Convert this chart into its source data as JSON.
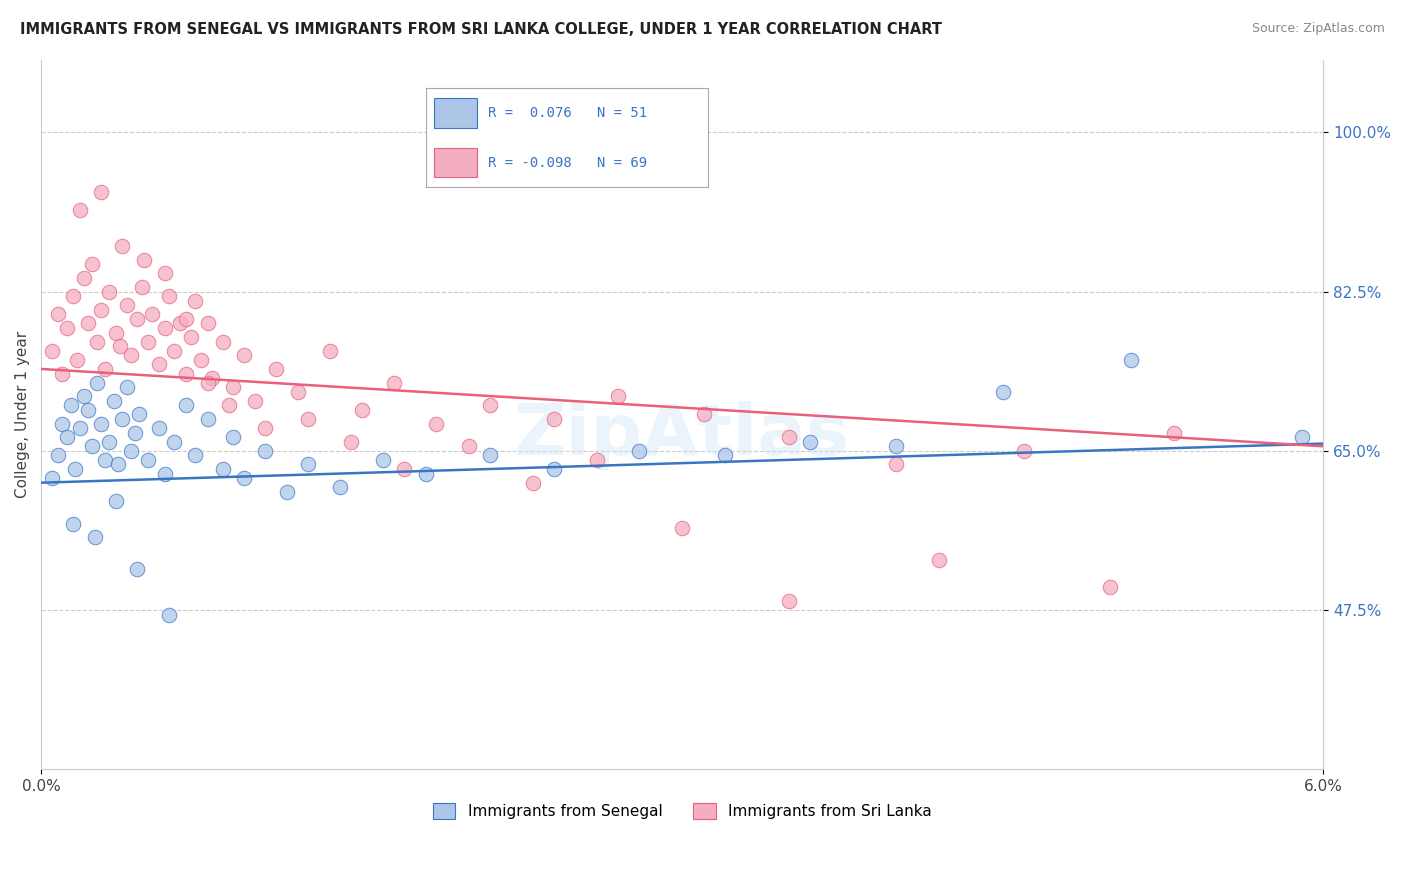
{
  "title": "IMMIGRANTS FROM SENEGAL VS IMMIGRANTS FROM SRI LANKA COLLEGE, UNDER 1 YEAR CORRELATION CHART",
  "source": "Source: ZipAtlas.com",
  "ylabel": "College, Under 1 year",
  "y_ticks": [
    47.5,
    65.0,
    82.5,
    100.0
  ],
  "y_tick_labels": [
    "47.5%",
    "65.0%",
    "82.5%",
    "100.0%"
  ],
  "x_min": 0.0,
  "x_max": 6.0,
  "y_min": 30.0,
  "y_max": 108.0,
  "legend_r1": "R =  0.076",
  "legend_n1": "N = 51",
  "legend_r2": "R = -0.098",
  "legend_n2": "N = 69",
  "color_senegal": "#adc6e8",
  "color_srilanka": "#f4aec0",
  "line_color_senegal": "#3a75c4",
  "line_color_srilanka": "#e8607a",
  "senegal_trend_x0": 0.0,
  "senegal_trend_y0": 61.5,
  "senegal_trend_x1": 6.0,
  "senegal_trend_y1": 65.8,
  "srilanka_trend_x0": 0.0,
  "srilanka_trend_y0": 74.0,
  "srilanka_trend_x1": 6.0,
  "srilanka_trend_y1": 65.5,
  "senegal_x": [
    0.05,
    0.08,
    0.1,
    0.12,
    0.14,
    0.16,
    0.18,
    0.2,
    0.22,
    0.24,
    0.26,
    0.28,
    0.3,
    0.32,
    0.34,
    0.36,
    0.38,
    0.4,
    0.42,
    0.44,
    0.46,
    0.5,
    0.55,
    0.58,
    0.62,
    0.68,
    0.72,
    0.78,
    0.85,
    0.9,
    0.95,
    1.05,
    1.15,
    1.25,
    1.4,
    1.6,
    1.8,
    2.1,
    2.4,
    2.8,
    3.2,
    3.6,
    4.0,
    4.5,
    5.1,
    5.9,
    0.15,
    0.25,
    0.35,
    0.45,
    0.6
  ],
  "senegal_y": [
    62.0,
    64.5,
    68.0,
    66.5,
    70.0,
    63.0,
    67.5,
    71.0,
    69.5,
    65.5,
    72.5,
    68.0,
    64.0,
    66.0,
    70.5,
    63.5,
    68.5,
    72.0,
    65.0,
    67.0,
    69.0,
    64.0,
    67.5,
    62.5,
    66.0,
    70.0,
    64.5,
    68.5,
    63.0,
    66.5,
    62.0,
    65.0,
    60.5,
    63.5,
    61.0,
    64.0,
    62.5,
    64.5,
    63.0,
    65.0,
    64.5,
    66.0,
    65.5,
    71.5,
    75.0,
    66.5,
    57.0,
    55.5,
    59.5,
    52.0,
    47.0
  ],
  "srilanka_x": [
    0.05,
    0.08,
    0.1,
    0.12,
    0.15,
    0.17,
    0.2,
    0.22,
    0.24,
    0.26,
    0.28,
    0.3,
    0.32,
    0.35,
    0.37,
    0.4,
    0.42,
    0.45,
    0.47,
    0.5,
    0.52,
    0.55,
    0.58,
    0.6,
    0.62,
    0.65,
    0.68,
    0.7,
    0.72,
    0.75,
    0.78,
    0.8,
    0.85,
    0.9,
    0.95,
    1.0,
    1.1,
    1.2,
    1.35,
    1.5,
    1.65,
    1.85,
    2.1,
    2.4,
    2.7,
    3.1,
    3.5,
    4.0,
    4.6,
    5.3,
    0.18,
    0.28,
    0.38,
    0.48,
    0.58,
    0.68,
    0.78,
    0.88,
    1.05,
    1.25,
    1.45,
    1.7,
    2.0,
    2.3,
    2.6,
    3.0,
    3.5,
    4.2,
    5.0
  ],
  "srilanka_y": [
    76.0,
    80.0,
    73.5,
    78.5,
    82.0,
    75.0,
    84.0,
    79.0,
    85.5,
    77.0,
    80.5,
    74.0,
    82.5,
    78.0,
    76.5,
    81.0,
    75.5,
    79.5,
    83.0,
    77.0,
    80.0,
    74.5,
    78.5,
    82.0,
    76.0,
    79.0,
    73.5,
    77.5,
    81.5,
    75.0,
    79.0,
    73.0,
    77.0,
    72.0,
    75.5,
    70.5,
    74.0,
    71.5,
    76.0,
    69.5,
    72.5,
    68.0,
    70.0,
    68.5,
    71.0,
    69.0,
    66.5,
    63.5,
    65.0,
    67.0,
    91.5,
    93.5,
    87.5,
    86.0,
    84.5,
    79.5,
    72.5,
    70.0,
    67.5,
    68.5,
    66.0,
    63.0,
    65.5,
    61.5,
    64.0,
    56.5,
    48.5,
    53.0,
    50.0
  ]
}
